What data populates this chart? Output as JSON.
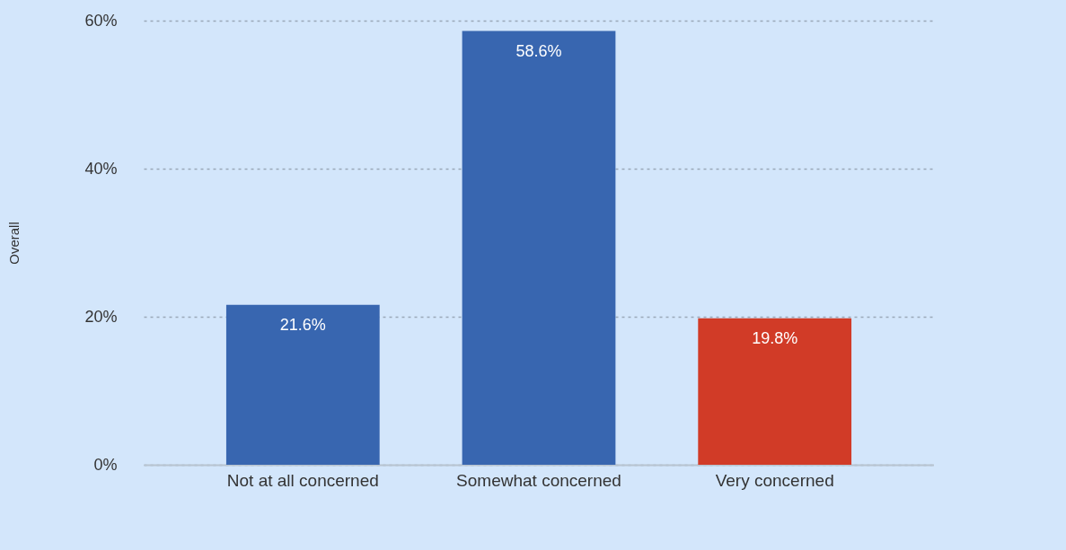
{
  "chart_data": {
    "type": "bar",
    "ylabel": "Overall",
    "categories": [
      "Not at all concerned",
      "Somewhat concerned",
      "Very concerned"
    ],
    "values": [
      21.6,
      58.6,
      19.8
    ],
    "colors": [
      "#3866b0",
      "#3866b0",
      "#d13b27"
    ],
    "value_labels": [
      "21.6%",
      "58.6%",
      "19.8%"
    ],
    "ylim": [
      0,
      60
    ],
    "yticks": [
      {
        "value": 0,
        "label": "0%"
      },
      {
        "value": 20,
        "label": "20%"
      },
      {
        "value": 40,
        "label": "40%"
      },
      {
        "value": 60,
        "label": "60%"
      }
    ],
    "grid": "y"
  }
}
